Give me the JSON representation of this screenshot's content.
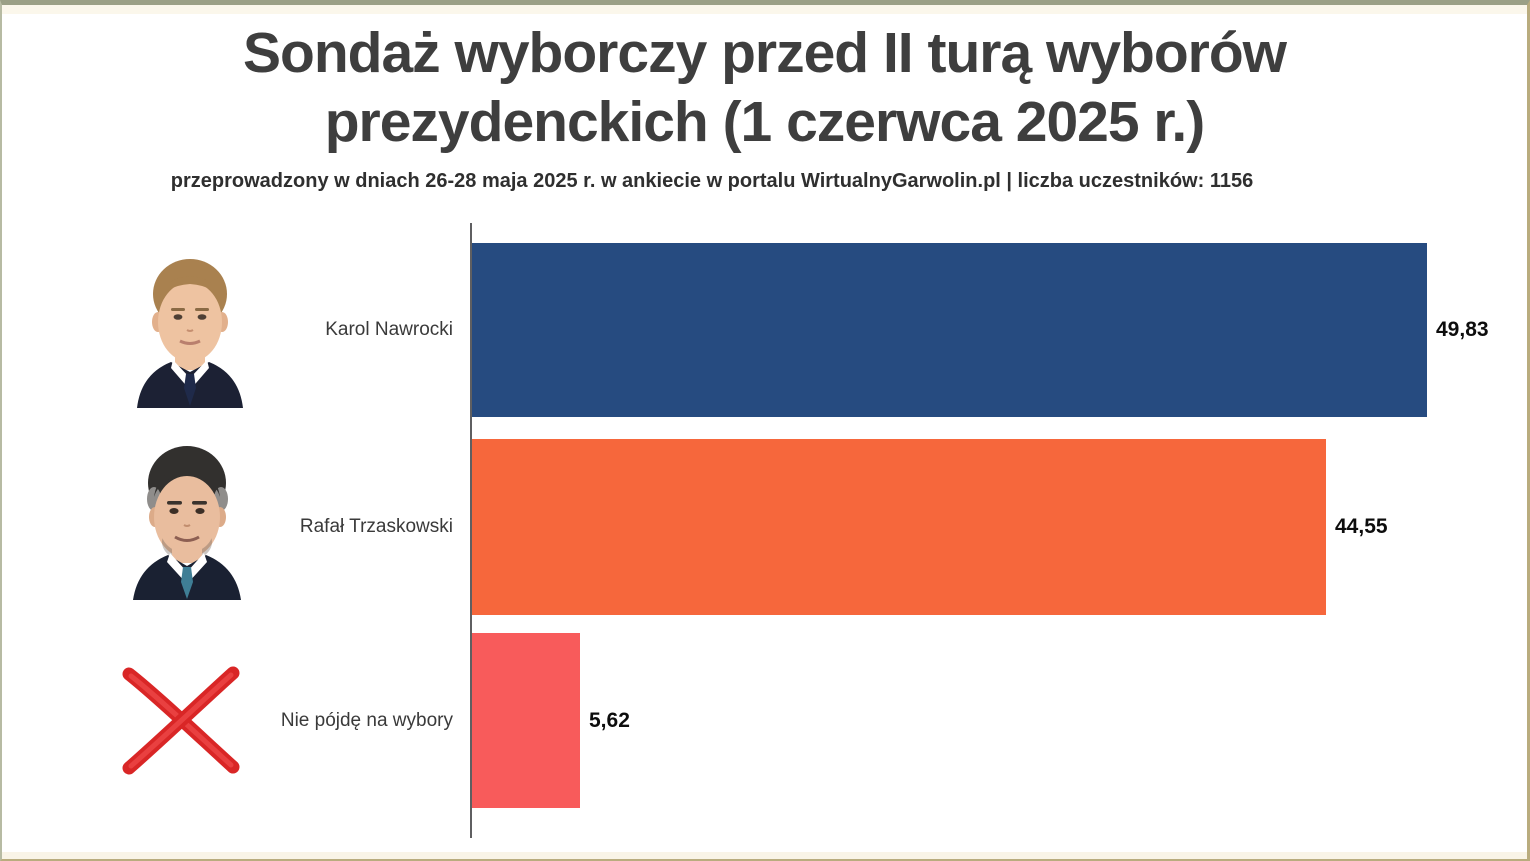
{
  "header": {
    "title_line1": "Sondaż wyborczy przed II turą wyborów",
    "title_line2": "prezydenckich (1 czerwca 2025 r.)",
    "subtitle": "przeprowadzony w dniach 26-28 maja 2025 r. w ankiecie w portalu WirtualnyGarwolin.pl | liczba uczestników: 1156"
  },
  "chart_data": {
    "type": "bar",
    "orientation": "horizontal",
    "title": "Sondaż wyborczy przed II turą wyborów prezydenckich (1 czerwca 2025 r.)",
    "subtitle": "przeprowadzony w dniach 26-28 maja 2025 r. w ankiecie w portalu WirtualnyGarwolin.pl | liczba uczestników: 1156",
    "xlabel": "",
    "ylabel": "",
    "axis_range": [
      0,
      50
    ],
    "grid": false,
    "legend": false,
    "categories": [
      "Karol Nawrocki",
      "Rafał Trzaskowski",
      "Nie pójdę na wybory"
    ],
    "values": [
      49.83,
      44.55,
      5.62
    ],
    "rows": [
      {
        "label": "Karol Nawrocki",
        "value": 49.83,
        "value_label": "49,83",
        "color": "#264B80",
        "icon": "karol-nawrocki-photo"
      },
      {
        "label": "Rafał Trzaskowski",
        "value": 44.55,
        "value_label": "44,55",
        "color": "#F6673C",
        "icon": "rafal-trzaskowski-photo"
      },
      {
        "label": "Nie pójdę na wybory",
        "value": 5.62,
        "value_label": "5,62",
        "color": "#F85B5B",
        "icon": "red-x-icon"
      }
    ]
  },
  "style": {
    "frame_border_top": "#9BA086",
    "frame_border_trim": "#B9AC7E",
    "axis_color": "#5F5F61",
    "title_color": "#3E3E3E"
  }
}
